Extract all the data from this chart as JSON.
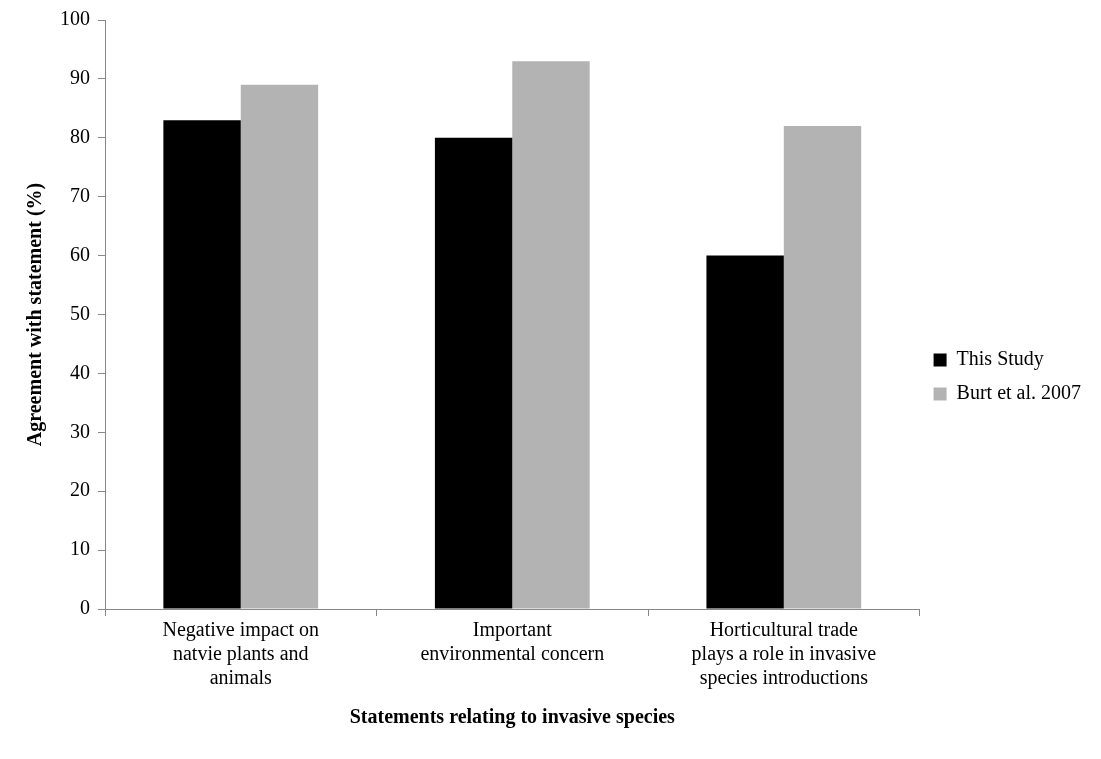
{
  "chart_data": {
    "type": "bar",
    "xlabel": "Statements relating to invasive species",
    "ylabel": "Agreement with statement (%)",
    "categories": [
      "Negative impact on natvie plants and animals",
      "Important environmental concern",
      "Horticultural trade plays a role in invasive species introductions"
    ],
    "series": [
      {
        "name": "This Study",
        "color": "#000000",
        "values": [
          83,
          80,
          60
        ]
      },
      {
        "name": "Burt et al. 2007",
        "color": "#b3b3b3",
        "values": [
          89,
          93,
          82
        ]
      }
    ],
    "ylim": [
      0,
      100
    ],
    "yticks": [
      0,
      10,
      20,
      30,
      40,
      50,
      60,
      70,
      80,
      90,
      100
    ],
    "grid": false,
    "legend": "right"
  }
}
